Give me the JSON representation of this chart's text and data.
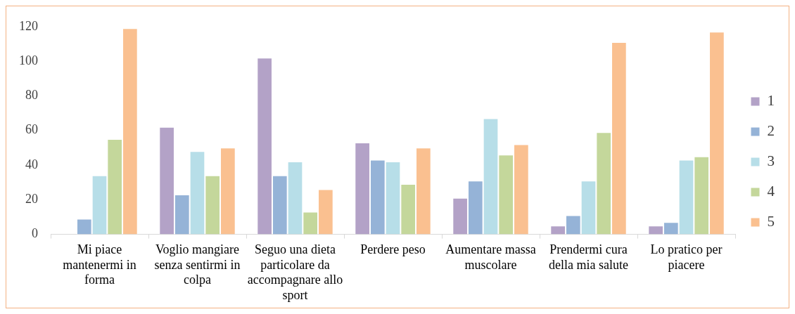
{
  "chart_data": {
    "type": "bar",
    "categories": [
      "Mi piace mantenermi in forma",
      "Voglio mangiare senza sentirmi in colpa",
      "Seguo una dieta particolare da accompagnare allo sport",
      "Perdere peso",
      "Aumentare massa muscolare",
      "Prendermi cura della mia salute",
      "Lo pratico per piacere"
    ],
    "series": [
      {
        "name": "1",
        "color": "#b3a2c7",
        "values": [
          0,
          62,
          102,
          53,
          21,
          5,
          5
        ]
      },
      {
        "name": "2",
        "color": "#95b3d7",
        "values": [
          9,
          23,
          34,
          43,
          31,
          11,
          7
        ]
      },
      {
        "name": "3",
        "color": "#b7dee8",
        "values": [
          34,
          48,
          42,
          42,
          67,
          31,
          43
        ]
      },
      {
        "name": "4",
        "color": "#c4d79b",
        "values": [
          55,
          34,
          13,
          29,
          46,
          59,
          45
        ]
      },
      {
        "name": "5",
        "color": "#fac090",
        "values": [
          119,
          50,
          26,
          50,
          52,
          111,
          117
        ]
      }
    ],
    "ylim": [
      0,
      120
    ],
    "yticks": [
      0,
      20,
      40,
      60,
      80,
      100,
      120
    ],
    "grid": false,
    "legend": "right"
  }
}
